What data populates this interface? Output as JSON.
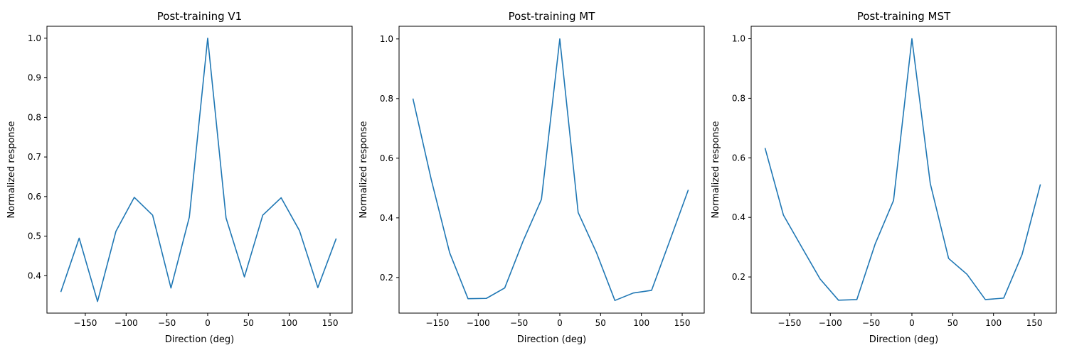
{
  "chart_data": [
    {
      "type": "line",
      "title": "Post-training V1",
      "xlabel": "Direction (deg)",
      "ylabel": "Normalized response",
      "xlim": [
        -197,
        177
      ],
      "ylim": [
        0.3056,
        1.0302
      ],
      "xticks": [
        -150,
        -100,
        -50,
        0,
        50,
        100,
        150
      ],
      "xtick_labels": [
        "−150",
        "−100",
        "−50",
        "0",
        "50",
        "100",
        "150"
      ],
      "yticks": [
        0.4,
        0.5,
        0.6,
        0.7,
        0.8,
        0.9,
        1.0
      ],
      "ytick_labels": [
        "0.4",
        "0.5",
        "0.6",
        "0.7",
        "0.8",
        "0.9",
        "1.0"
      ],
      "grid": false,
      "series": [
        {
          "color": "#1f77b4",
          "x": [
            -180,
            -157.5,
            -135,
            -112.5,
            -90,
            -67.5,
            -45,
            -22.5,
            0,
            22.5,
            45,
            67.5,
            90,
            112.5,
            135,
            157.5
          ],
          "y": [
            0.359,
            0.495,
            0.335,
            0.512,
            0.598,
            0.553,
            0.369,
            0.548,
            1.0,
            0.546,
            0.397,
            0.553,
            0.597,
            0.514,
            0.37,
            0.494
          ]
        }
      ]
    },
    {
      "type": "line",
      "title": "Post-training MT",
      "xlabel": "Direction (deg)",
      "ylabel": "Normalized response",
      "xlim": [
        -197,
        177
      ],
      "ylim": [
        0.0806,
        1.0424
      ],
      "xticks": [
        -150,
        -100,
        -50,
        0,
        50,
        100,
        150
      ],
      "xtick_labels": [
        "−150",
        "−100",
        "−50",
        "0",
        "50",
        "100",
        "150"
      ],
      "yticks": [
        0.2,
        0.4,
        0.6,
        0.8,
        1.0
      ],
      "ytick_labels": [
        "0.2",
        "0.4",
        "0.6",
        "0.8",
        "1.0"
      ],
      "grid": false,
      "series": [
        {
          "color": "#1f77b4",
          "x": [
            -180,
            -157.5,
            -135,
            -112.5,
            -90,
            -67.5,
            -45,
            -22.5,
            0,
            22.5,
            45,
            67.5,
            90,
            112.5,
            135,
            157.5
          ],
          "y": [
            0.8,
            0.528,
            0.283,
            0.129,
            0.13,
            0.165,
            0.322,
            0.462,
            1.0,
            0.418,
            0.283,
            0.123,
            0.148,
            0.157,
            0.325,
            0.494
          ]
        }
      ]
    },
    {
      "type": "line",
      "title": "Post-training MST",
      "xlabel": "Direction (deg)",
      "ylabel": "Normalized response",
      "xlim": [
        -197,
        177
      ],
      "ylim": [
        0.0786,
        1.0418
      ],
      "xticks": [
        -150,
        -100,
        -50,
        0,
        50,
        100,
        150
      ],
      "xtick_labels": [
        "−150",
        "−100",
        "−50",
        "0",
        "50",
        "100",
        "150"
      ],
      "yticks": [
        0.2,
        0.4,
        0.6,
        0.8,
        1.0
      ],
      "ytick_labels": [
        "0.2",
        "0.4",
        "0.6",
        "0.8",
        "1.0"
      ],
      "grid": false,
      "series": [
        {
          "color": "#1f77b4",
          "x": [
            -180,
            -157.5,
            -135,
            -112.5,
            -90,
            -67.5,
            -45,
            -22.5,
            0,
            22.5,
            45,
            67.5,
            90,
            112.5,
            135,
            157.5
          ],
          "y": [
            0.633,
            0.408,
            0.3,
            0.193,
            0.122,
            0.124,
            0.311,
            0.457,
            1.0,
            0.514,
            0.262,
            0.209,
            0.124,
            0.129,
            0.275,
            0.511
          ]
        }
      ]
    }
  ]
}
